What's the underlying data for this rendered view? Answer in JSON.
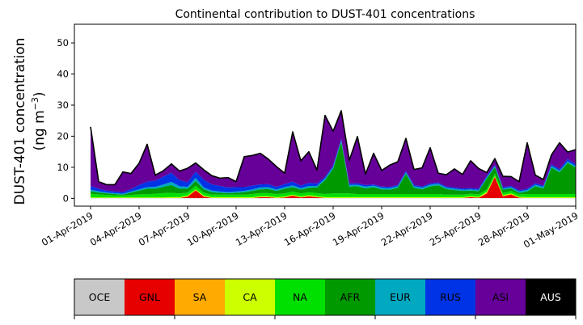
{
  "chart_data": {
    "type": "area",
    "stacked": true,
    "title": "Continental contribution to DUST-401 concentrations",
    "ylabel_line1": "DUST-401 concentration",
    "ylabel_line2_prefix": "(ng m",
    "ylabel_line2_sup": "−3",
    "ylabel_line2_suffix": ")",
    "xlabel": "",
    "ylim": [
      -2.5,
      56
    ],
    "yticks": [
      0,
      10,
      20,
      30,
      40,
      50
    ],
    "xlim": [
      "2019-03-31",
      "2019-05-01"
    ],
    "xticks": [
      {
        "date": "2019-04-01",
        "label": "01-Apr-2019"
      },
      {
        "date": "2019-04-04",
        "label": "04-Apr-2019"
      },
      {
        "date": "2019-04-07",
        "label": "07-Apr-2019"
      },
      {
        "date": "2019-04-10",
        "label": "10-Apr-2019"
      },
      {
        "date": "2019-04-13",
        "label": "13-Apr-2019"
      },
      {
        "date": "2019-04-16",
        "label": "16-Apr-2019"
      },
      {
        "date": "2019-04-19",
        "label": "19-Apr-2019"
      },
      {
        "date": "2019-04-22",
        "label": "22-Apr-2019"
      },
      {
        "date": "2019-04-25",
        "label": "25-Apr-2019"
      },
      {
        "date": "2019-04-28",
        "label": "28-Apr-2019"
      },
      {
        "date": "2019-05-01",
        "label": "01-May-2019"
      }
    ],
    "grid": false,
    "legend_position": "colorbar-below",
    "x": [
      "2019-04-01T00:00",
      "2019-04-01T12:00",
      "2019-04-02T00:00",
      "2019-04-02T12:00",
      "2019-04-03T00:00",
      "2019-04-03T12:00",
      "2019-04-04T00:00",
      "2019-04-04T12:00",
      "2019-04-05T00:00",
      "2019-04-05T12:00",
      "2019-04-06T00:00",
      "2019-04-06T12:00",
      "2019-04-07T00:00",
      "2019-04-07T12:00",
      "2019-04-08T00:00",
      "2019-04-08T12:00",
      "2019-04-09T00:00",
      "2019-04-09T12:00",
      "2019-04-10T00:00",
      "2019-04-10T12:00",
      "2019-04-11T00:00",
      "2019-04-11T12:00",
      "2019-04-12T00:00",
      "2019-04-12T12:00",
      "2019-04-13T00:00",
      "2019-04-13T12:00",
      "2019-04-14T00:00",
      "2019-04-14T12:00",
      "2019-04-15T00:00",
      "2019-04-15T12:00",
      "2019-04-16T00:00",
      "2019-04-16T12:00",
      "2019-04-17T00:00",
      "2019-04-17T12:00",
      "2019-04-18T00:00",
      "2019-04-18T12:00",
      "2019-04-19T00:00",
      "2019-04-19T12:00",
      "2019-04-20T00:00",
      "2019-04-20T12:00",
      "2019-04-21T00:00",
      "2019-04-21T12:00",
      "2019-04-22T00:00",
      "2019-04-22T12:00",
      "2019-04-23T00:00",
      "2019-04-23T12:00",
      "2019-04-24T00:00",
      "2019-04-24T12:00",
      "2019-04-25T00:00",
      "2019-04-25T12:00",
      "2019-04-26T00:00",
      "2019-04-26T12:00",
      "2019-04-27T00:00",
      "2019-04-27T12:00",
      "2019-04-28T00:00",
      "2019-04-28T12:00",
      "2019-04-29T00:00",
      "2019-04-29T12:00",
      "2019-04-30T00:00",
      "2019-04-30T12:00",
      "2019-05-01T00:00"
    ],
    "series": [
      {
        "name": "OCE",
        "color": "#c8c8c8",
        "values": [
          0.1,
          0.1,
          0.1,
          0.1,
          0.1,
          0.1,
          0.1,
          0.1,
          0.1,
          0.1,
          0.1,
          0.1,
          0.1,
          0.1,
          0.1,
          0.1,
          0.1,
          0.1,
          0.1,
          0.1,
          0.1,
          0.1,
          0.1,
          0.1,
          0.1,
          0.1,
          0.1,
          0.1,
          0.1,
          0.1,
          0.1,
          0.1,
          0.1,
          0.1,
          0.1,
          0.1,
          0.1,
          0.1,
          0.1,
          0.1,
          0.1,
          0.1,
          0.1,
          0.1,
          0.1,
          0.1,
          0.1,
          0.1,
          0.1,
          0.1,
          0.1,
          0.1,
          0.1,
          0.1,
          0.1,
          0.1,
          0.1,
          0.1,
          0.1,
          0.1,
          0.1
        ]
      },
      {
        "name": "GNL",
        "color": "#e60000",
        "values": [
          0,
          0,
          0,
          0,
          0,
          0,
          0,
          0,
          0,
          0,
          0,
          0,
          0.5,
          2.5,
          0.5,
          0,
          0,
          0,
          0,
          0,
          0,
          0.3,
          0.3,
          0,
          0.2,
          0.8,
          0.2,
          0.6,
          0.3,
          0,
          0,
          0,
          0,
          0,
          0,
          0,
          0,
          0,
          0,
          0,
          0,
          0,
          0,
          0,
          0,
          0,
          0,
          0.3,
          0.1,
          1.5,
          6.8,
          0.6,
          1.2,
          0.1,
          0,
          0,
          0,
          0,
          0,
          0,
          0
        ]
      },
      {
        "name": "SA",
        "color": "#ffaa00",
        "values": [
          0,
          0,
          0,
          0,
          0,
          0,
          0,
          0,
          0,
          0,
          0,
          0,
          0,
          0,
          0,
          0,
          0,
          0,
          0,
          0,
          0,
          0,
          0,
          0,
          0,
          0,
          0,
          0,
          0,
          0,
          0,
          0,
          0,
          0,
          0,
          0,
          0,
          0,
          0,
          0,
          0,
          0,
          0,
          0,
          0,
          0,
          0,
          0,
          0,
          0.2,
          0,
          0,
          0,
          0,
          0,
          0,
          0,
          0,
          0,
          0,
          0
        ]
      },
      {
        "name": "CA",
        "color": "#ccff00",
        "values": [
          0.2,
          0.2,
          0.2,
          0.2,
          0.2,
          0.2,
          0.2,
          0.2,
          0.2,
          0.2,
          0.3,
          0.3,
          0.3,
          0.3,
          0.3,
          0.3,
          0.3,
          0.3,
          0.3,
          0.3,
          0.3,
          0.3,
          0.3,
          0.3,
          0.3,
          0.3,
          0.3,
          0.3,
          0.3,
          0.3,
          0.3,
          0.3,
          0.3,
          0.3,
          0.3,
          0.3,
          0.3,
          0.3,
          0.3,
          0.3,
          0.3,
          0.3,
          0.3,
          0.3,
          0.3,
          0.3,
          0.3,
          0.3,
          0.3,
          0.3,
          0.3,
          0.3,
          0.3,
          0.3,
          0.3,
          0.3,
          0.3,
          0.3,
          0.3,
          0.3,
          0.3
        ]
      },
      {
        "name": "NA",
        "color": "#00e000",
        "values": [
          1.2,
          1.0,
          0.8,
          0.7,
          0.6,
          0.8,
          1.0,
          1.0,
          1.2,
          1.4,
          1.4,
          1.2,
          1.0,
          1.2,
          1.0,
          0.8,
          0.8,
          0.8,
          0.8,
          0.8,
          1.0,
          1.0,
          1.0,
          1.0,
          1.0,
          1.0,
          1.0,
          1.0,
          1.0,
          1.0,
          1.2,
          1.2,
          1.2,
          1.0,
          1.0,
          1.0,
          1.0,
          1.0,
          1.0,
          1.0,
          1.0,
          1.0,
          1.0,
          1.0,
          0.8,
          0.8,
          0.8,
          0.8,
          0.8,
          0.8,
          0.8,
          0.8,
          0.8,
          0.8,
          1.0,
          1.0,
          1.0,
          1.0,
          1.0,
          1.0,
          1.0
        ]
      },
      {
        "name": "AFR",
        "color": "#009900",
        "values": [
          0.8,
          0.6,
          0.5,
          0.4,
          0.3,
          0.8,
          1.2,
          1.8,
          1.6,
          2.0,
          2.5,
          1.5,
          1.2,
          1.5,
          1.0,
          0.8,
          0.6,
          0.5,
          0.6,
          0.8,
          1.0,
          1.2,
          1.3,
          1.0,
          1.5,
          1.4,
          1.2,
          1.4,
          1.8,
          4.5,
          8.0,
          16.5,
          2.2,
          2.5,
          1.8,
          2.2,
          1.5,
          1.4,
          2.0,
          6.5,
          2.0,
          1.5,
          2.5,
          2.8,
          1.8,
          1.5,
          1.2,
          1.0,
          1.0,
          3.5,
          2.0,
          1.0,
          0.8,
          0.5,
          0.8,
          2.5,
          1.8,
          8.5,
          7.0,
          10.0,
          8.5
        ]
      },
      {
        "name": "EUR",
        "color": "#00a8c0",
        "values": [
          0.5,
          0.4,
          0.3,
          0.3,
          0.3,
          0.3,
          0.4,
          0.5,
          0.6,
          0.8,
          1.0,
          0.8,
          0.6,
          1.0,
          0.6,
          0.5,
          0.4,
          0.3,
          0.4,
          0.4,
          0.5,
          0.6,
          0.6,
          0.5,
          0.5,
          0.6,
          0.5,
          0.6,
          0.5,
          0.5,
          0.5,
          0.5,
          0.5,
          0.5,
          0.6,
          0.5,
          0.5,
          0.5,
          0.5,
          0.5,
          0.5,
          0.5,
          0.5,
          0.5,
          0.4,
          0.4,
          0.4,
          0.4,
          0.4,
          0.4,
          0.4,
          0.4,
          0.4,
          0.4,
          0.5,
          0.5,
          0.5,
          0.5,
          0.5,
          0.5,
          0.5
        ]
      },
      {
        "name": "RUS",
        "color": "#0033e6",
        "values": [
          1.2,
          0.8,
          0.6,
          0.5,
          0.5,
          0.8,
          1.4,
          1.8,
          2.0,
          2.5,
          3.0,
          2.0,
          1.5,
          2.0,
          2.5,
          2.0,
          1.8,
          1.5,
          1.4,
          1.2,
          1.2,
          1.0,
          1.0,
          0.8,
          1.0,
          1.2,
          0.8,
          1.0,
          0.8,
          0.5,
          0.5,
          0.6,
          0.5,
          0.5,
          0.5,
          0.4,
          0.4,
          0.4,
          0.4,
          0.4,
          0.4,
          0.4,
          0.4,
          0.4,
          0.4,
          0.4,
          0.4,
          0.4,
          0.4,
          0.5,
          0.4,
          0.4,
          0.4,
          0.4,
          0.4,
          0.5,
          0.4,
          0.6,
          0.5,
          0.8,
          0.6
        ]
      },
      {
        "name": "ASI",
        "color": "#660099",
        "values": [
          19.0,
          2.3,
          1.9,
          2.2,
          6.5,
          5.0,
          7.0,
          12.0,
          1.8,
          1.9,
          2.8,
          2.9,
          4.5,
          2.8,
          3.2,
          2.8,
          2.5,
          3.2,
          1.8,
          9.8,
          9.7,
          10.0,
          8.0,
          6.5,
          3.5,
          16.0,
          8.0,
          10.0,
          4.3,
          19.8,
          11.0,
          9.0,
          7.5,
          15.0,
          3.5,
          10.0,
          5.2,
          7.0,
          7.5,
          10.5,
          5.0,
          6.0,
          11.5,
          3.0,
          3.8,
          6.0,
          4.5,
          8.8,
          6.5,
          1.0,
          2.0,
          3.5,
          3.0,
          2.8,
          14.8,
          2.6,
          2.0,
          3.0,
          8.5,
          2.2,
          4.7
        ]
      },
      {
        "name": "AUS",
        "color": "#000000",
        "values": [
          0,
          0,
          0,
          0,
          0,
          0,
          0,
          0,
          0,
          0,
          0,
          0,
          0,
          0,
          0,
          0,
          0,
          0,
          0,
          0,
          0,
          0,
          0,
          0,
          0,
          0,
          0,
          0,
          0,
          0,
          0,
          0,
          0,
          0,
          0,
          0,
          0,
          0,
          0,
          0,
          0,
          0,
          0,
          0,
          0,
          0,
          0,
          0,
          0,
          0,
          0,
          0,
          0,
          0,
          0,
          0,
          0,
          0,
          0,
          0,
          0
        ]
      }
    ],
    "legend": [
      {
        "label": "OCE",
        "color": "#c8c8c8",
        "text_color": "#000000"
      },
      {
        "label": "GNL",
        "color": "#e60000",
        "text_color": "#000000"
      },
      {
        "label": "SA",
        "color": "#ffaa00",
        "text_color": "#000000"
      },
      {
        "label": "CA",
        "color": "#ccff00",
        "text_color": "#000000"
      },
      {
        "label": "NA",
        "color": "#00e000",
        "text_color": "#000000"
      },
      {
        "label": "AFR",
        "color": "#009900",
        "text_color": "#000000"
      },
      {
        "label": "EUR",
        "color": "#00a8c0",
        "text_color": "#000000"
      },
      {
        "label": "RUS",
        "color": "#0033e6",
        "text_color": "#000000"
      },
      {
        "label": "ASI",
        "color": "#660099",
        "text_color": "#000000"
      },
      {
        "label": "AUS",
        "color": "#000000",
        "text_color": "#ffffff"
      }
    ]
  }
}
